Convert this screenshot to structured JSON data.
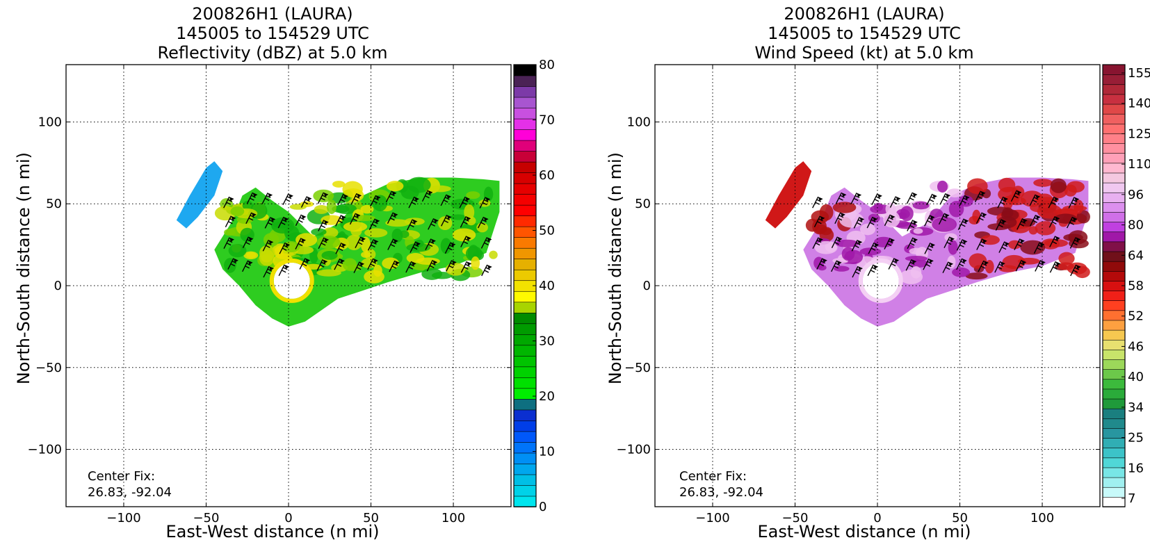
{
  "chart_data": [
    {
      "type": "heatmap",
      "title_lines": [
        "200826H1 (LAURA)",
        "145005 to 154529 UTC",
        "Reflectivity (dBZ) at 5.0 km"
      ],
      "xlabel": "East-West distance (n mi)",
      "ylabel": "North-South distance (n mi)",
      "xlim": [
        -135,
        135
      ],
      "ylim": [
        -135,
        135
      ],
      "xticks": [
        -100,
        -50,
        0,
        50,
        100
      ],
      "yticks": [
        -100,
        -50,
        0,
        50,
        100
      ],
      "xtick_labels": [
        "−100",
        "−50",
        "0",
        "50",
        "100"
      ],
      "ytick_labels": [
        "−100",
        "−50",
        "0",
        "50",
        "100"
      ],
      "grid": true,
      "annotation": [
        "Center Fix:",
        "26.83, -92.04"
      ],
      "colorbar": {
        "min": 0,
        "max": 80,
        "ticks": [
          0,
          10,
          20,
          30,
          40,
          50,
          60,
          70,
          80
        ],
        "tick_labels": [
          "0",
          "10",
          "20",
          "30",
          "40",
          "50",
          "60",
          "70",
          "80"
        ],
        "colors": [
          "#00e5ee",
          "#00d2e8",
          "#00bfe6",
          "#00a7ee",
          "#008ff5",
          "#0074fa",
          "#0058fa",
          "#003ee8",
          "#0b2fd0",
          "#0e6f80",
          "#00ee00",
          "#00e000",
          "#00d200",
          "#00c400",
          "#00b600",
          "#00a800",
          "#009b00",
          "#008b00",
          "#a8d400",
          "#fffa00",
          "#f2e200",
          "#ecca00",
          "#e6b000",
          "#f09600",
          "#fa7a00",
          "#ff5500",
          "#ff2a00",
          "#ff0000",
          "#f50000",
          "#e60000",
          "#d70000",
          "#c60000",
          "#c80038",
          "#e0007a",
          "#ff00d8",
          "#e430e8",
          "#c850e0",
          "#a855d0",
          "#7c3aa8",
          "#4a2255",
          "#000000"
        ]
      }
    },
    {
      "type": "heatmap",
      "title_lines": [
        "200826H1 (LAURA)",
        "145005 to 154529 UTC",
        "Wind Speed (kt) at 5.0 km"
      ],
      "xlabel": "East-West distance (n mi)",
      "ylabel": "North-South distance (n mi)",
      "xlim": [
        -135,
        135
      ],
      "ylim": [
        -135,
        135
      ],
      "xticks": [
        -100,
        -50,
        0,
        50,
        100
      ],
      "yticks": [
        -100,
        -50,
        0,
        50,
        100
      ],
      "xtick_labels": [
        "−100",
        "−50",
        "0",
        "50",
        "100"
      ],
      "ytick_labels": [
        "−100",
        "−50",
        "0",
        "50",
        "100"
      ],
      "grid": true,
      "annotation": [
        "Center Fix:",
        "26.83, -92.04"
      ],
      "colorbar": {
        "tick_labels": [
          "7",
          "16",
          "25",
          "34",
          "40",
          "46",
          "52",
          "58",
          "64",
          "80",
          "96",
          "110",
          "125",
          "140",
          "155"
        ],
        "colors": [
          "#ffffff",
          "#c8fafa",
          "#a0f0f0",
          "#78e6e6",
          "#50d7d7",
          "#3cc3c8",
          "#30aeb4",
          "#2896a0",
          "#208a8c",
          "#1a7f7f",
          "#1f9a3a",
          "#2aab3a",
          "#3cba3c",
          "#6cc84a",
          "#9cd85a",
          "#c8e46a",
          "#e8e070",
          "#f6c850",
          "#fda040",
          "#ff7030",
          "#ff4020",
          "#f02018",
          "#d81010",
          "#b40a0a",
          "#900a0a",
          "#70101a",
          "#801048",
          "#a018a8",
          "#c040e0",
          "#d070e8",
          "#dc90ee",
          "#e8b0f0",
          "#f0c8f0",
          "#f4c8e0",
          "#ffb8d0",
          "#ffa0b8",
          "#ff90a0",
          "#ff8088",
          "#ff7070",
          "#f06060",
          "#e04848",
          "#c83040",
          "#b02838",
          "#981e36",
          "#881430"
        ]
      }
    }
  ]
}
